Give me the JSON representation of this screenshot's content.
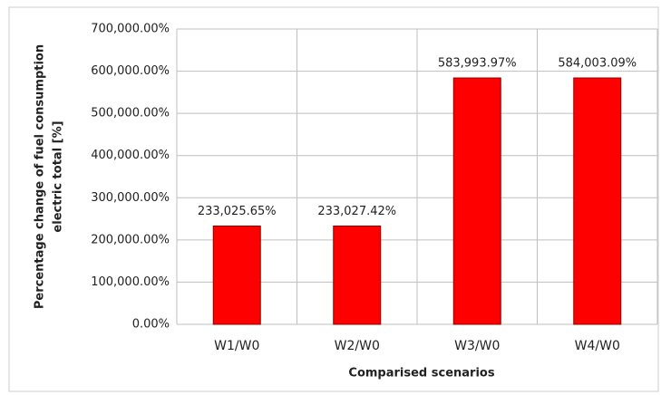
{
  "chart_data": {
    "type": "bar",
    "ylabel": [
      "Percentage change of fuel consumption",
      "electric total [%]"
    ],
    "xlabel": "Comparised scenarios",
    "categories": [
      "W1/W0",
      "W2/W0",
      "W3/W0",
      "W4/W0"
    ],
    "values": [
      233025.65,
      233027.42,
      583993.97,
      584003.09
    ],
    "value_labels": [
      "233,025.65%",
      "233,027.42%",
      "583,993.97%",
      "584,003.09%"
    ],
    "color": "#ff0000",
    "ylim": [
      0,
      700000
    ],
    "yticks": [
      {
        "value": 0,
        "label": "0.00%"
      },
      {
        "value": 100000,
        "label": "100,000.00%"
      },
      {
        "value": 200000,
        "label": "200,000.00%"
      },
      {
        "value": 300000,
        "label": "300,000.00%"
      },
      {
        "value": 400000,
        "label": "400,000.00%"
      },
      {
        "value": 500000,
        "label": "500,000.00%"
      },
      {
        "value": 600000,
        "label": "600,000.00%"
      },
      {
        "value": 700000,
        "label": "700,000.00%"
      }
    ],
    "grid": true
  }
}
